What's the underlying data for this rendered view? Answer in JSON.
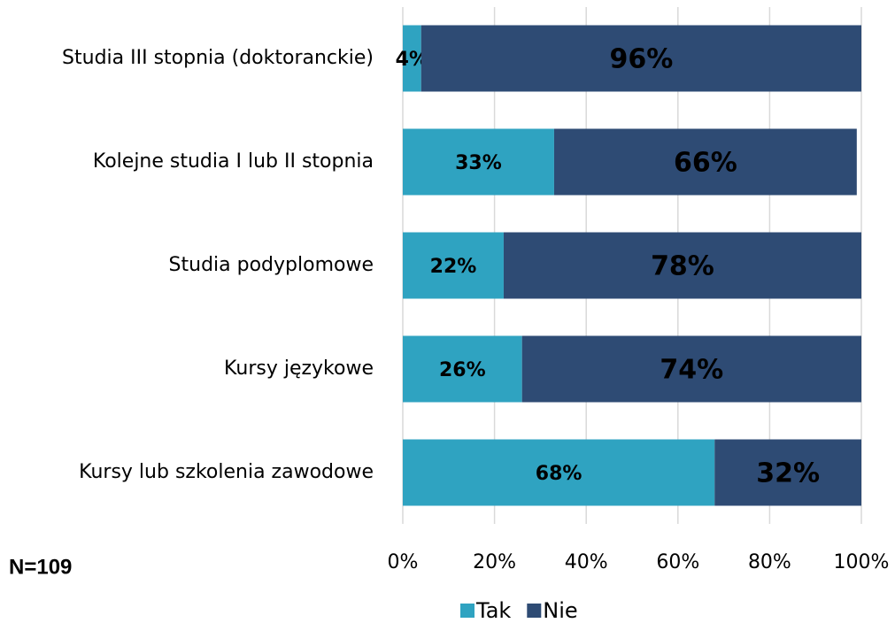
{
  "chart_data": {
    "type": "stacked-bar-horizontal",
    "categories": [
      "Studia III stopnia (doktoranckie)",
      "Kolejne studia I lub II stopnia",
      "Studia podyplomowe",
      "Kursy językowe",
      "Kursy lub szkolenia zawodowe"
    ],
    "series": [
      {
        "name": "Tak",
        "color": "#2fa3c1",
        "label_color": "#000000",
        "values": [
          4,
          33,
          22,
          26,
          68
        ],
        "value_labels": [
          "4%",
          "33%",
          "22%",
          "26%",
          "68%"
        ]
      },
      {
        "name": "Nie",
        "color": "#2e4b74",
        "label_color": "#ffffff",
        "values": [
          96,
          66,
          78,
          74,
          32
        ],
        "value_labels": [
          "96%",
          "66%",
          "78%",
          "74%",
          "32%"
        ]
      }
    ],
    "xlim": [
      0,
      100
    ],
    "xticks": [
      {
        "value": 0,
        "label": "0%"
      },
      {
        "value": 20,
        "label": "20%"
      },
      {
        "value": 40,
        "label": "40%"
      },
      {
        "value": 60,
        "label": "60%"
      },
      {
        "value": 80,
        "label": "80%"
      },
      {
        "value": 100,
        "label": "100%"
      }
    ],
    "grid": true,
    "legend": "bottom",
    "annotation": "N=109"
  }
}
